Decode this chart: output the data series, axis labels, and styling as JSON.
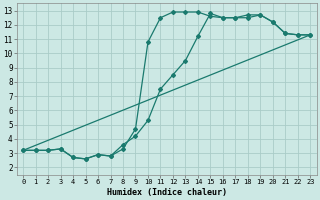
{
  "xlabel": "Humidex (Indice chaleur)",
  "bg_color": "#cce8e4",
  "grid_color": "#aaccc8",
  "line_color": "#1a7a6e",
  "xlim": [
    -0.5,
    23.5
  ],
  "ylim": [
    1.5,
    13.5
  ],
  "xtick_labels": [
    "0",
    "1",
    "2",
    "3",
    "4",
    "5",
    "6",
    "7",
    "8",
    "9",
    "10",
    "11",
    "12",
    "13",
    "14",
    "15",
    "16",
    "17",
    "18",
    "19",
    "20",
    "21",
    "22",
    "23"
  ],
  "ytick_labels": [
    "2",
    "3",
    "4",
    "5",
    "6",
    "7",
    "8",
    "9",
    "10",
    "11",
    "12",
    "13"
  ],
  "xticks": [
    0,
    1,
    2,
    3,
    4,
    5,
    6,
    7,
    8,
    9,
    10,
    11,
    12,
    13,
    14,
    15,
    16,
    17,
    18,
    19,
    20,
    21,
    22,
    23
  ],
  "yticks": [
    2,
    3,
    4,
    5,
    6,
    7,
    8,
    9,
    10,
    11,
    12,
    13
  ],
  "line1_x": [
    0,
    1,
    2,
    3,
    4,
    5,
    6,
    7,
    8,
    9,
    10,
    11,
    12,
    13,
    14,
    15,
    16,
    17,
    18,
    19,
    20,
    21,
    22,
    23
  ],
  "line1_y": [
    3.2,
    3.2,
    3.2,
    3.3,
    2.7,
    2.6,
    2.9,
    2.8,
    3.3,
    4.7,
    10.8,
    12.5,
    12.9,
    12.9,
    12.9,
    12.6,
    12.5,
    12.5,
    12.5,
    12.7,
    12.2,
    11.4,
    11.3,
    11.3
  ],
  "line2_x": [
    0,
    1,
    2,
    3,
    4,
    5,
    6,
    7,
    8,
    9,
    10,
    11,
    12,
    13,
    14,
    15,
    16,
    17,
    18,
    19,
    20,
    21,
    22,
    23
  ],
  "line2_y": [
    3.2,
    3.2,
    3.2,
    3.3,
    2.7,
    2.6,
    2.9,
    2.8,
    3.6,
    4.2,
    5.3,
    7.5,
    8.5,
    9.5,
    11.2,
    12.8,
    12.5,
    12.5,
    12.7,
    12.7,
    12.2,
    11.4,
    11.3,
    11.3
  ],
  "line3_x": [
    0,
    23
  ],
  "line3_y": [
    3.2,
    11.3
  ]
}
